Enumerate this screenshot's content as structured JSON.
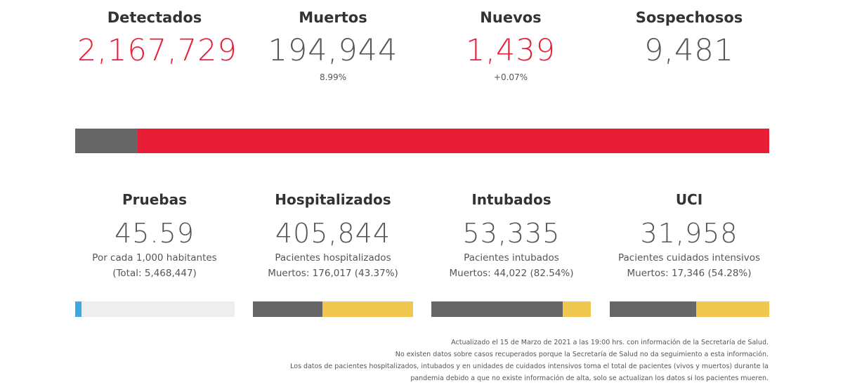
{
  "top_stats": {
    "detectados": {
      "label": "Detectados",
      "value": "2,167,729"
    },
    "muertos": {
      "label": "Muertos",
      "value": "194,944",
      "sub": "8.99%"
    },
    "nuevos": {
      "label": "Nuevos",
      "value": "1,439",
      "sub": "+0.07%"
    },
    "sospechosos": {
      "label": "Sospechosos",
      "value": "9,481"
    }
  },
  "main_bar": {
    "muertos_fraction": 0.0899,
    "colors": {
      "muertos": "#666666",
      "detectados": "#e81e36"
    }
  },
  "bottom_stats": {
    "pruebas": {
      "label": "Pruebas",
      "value": "45.59",
      "line1": "Por cada 1,000 habitantes",
      "line2": "(Total: 5,468,447)",
      "bar_fraction": 0.04,
      "bar_color": "#3aa9e6",
      "bar_bg": "#eeeeee"
    },
    "hospitalizados": {
      "label": "Hospitalizados",
      "value": "405,844",
      "line1": "Pacientes hospitalizados",
      "line2": "Muertos: 176,017 (43.37%)",
      "bar_fraction": 0.4337,
      "bar_color": "#666666",
      "bar_bg": "#f0c850"
    },
    "intubados": {
      "label": "Intubados",
      "value": "53,335",
      "line1": "Pacientes intubados",
      "line2": "Muertos: 44,022 (82.54%)",
      "bar_fraction": 0.8254,
      "bar_color": "#666666",
      "bar_bg": "#f0c850"
    },
    "uci": {
      "label": "UCI",
      "value": "31,958",
      "line1": "Pacientes cuidados intensivos",
      "line2": "Muertos: 17,346 (54.28%)",
      "bar_fraction": 0.5428,
      "bar_color": "#666666",
      "bar_bg": "#f0c850"
    }
  },
  "footer": {
    "line1": "Actualizado el 15 de Marzo de 2021 a las 19:00 hrs. con información de la Secretaría de Salud.",
    "line2": "No existen datos sobre casos recuperados porque la Secretaría de Salud no da seguimiento a esta información.",
    "line3": "Los datos de pacientes hospitalizados, intubados y en unidades de cuidados intensivos toma el total de pacientes (vivos y muertos) durante la",
    "line4": "pandemia debido a que no existe información de alta, solo se actualizan los datos si los pacientes mueren."
  }
}
